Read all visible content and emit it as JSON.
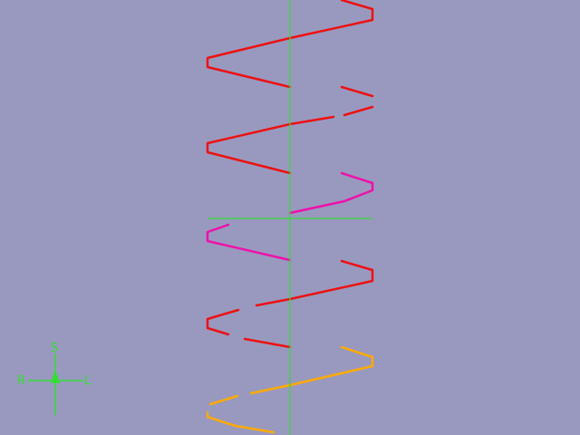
{
  "viewer": {
    "background_color": "#9999bf",
    "crosshair_color": "#33dd33",
    "orientation_color": "#33dd33",
    "orientation_labels": {
      "top": "S",
      "left": "R",
      "right": "L"
    }
  },
  "helix": {
    "segment_colors": {
      "strand": "#ee1111",
      "highlight": "#ee11aa",
      "end": "#ffaa00"
    }
  }
}
